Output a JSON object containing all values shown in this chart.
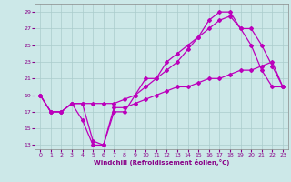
{
  "xlabel": "Windchill (Refroidissement éolien,°C)",
  "xlim": [
    -0.5,
    23.5
  ],
  "ylim": [
    12.5,
    30
  ],
  "yticks": [
    13,
    15,
    17,
    19,
    21,
    23,
    25,
    27,
    29
  ],
  "xticks": [
    0,
    1,
    2,
    3,
    4,
    5,
    6,
    7,
    8,
    9,
    10,
    11,
    12,
    13,
    14,
    15,
    16,
    17,
    18,
    19,
    20,
    21,
    22,
    23
  ],
  "line_color": "#bb00bb",
  "bg_color": "#cce8e8",
  "grid_color": "#aacccc",
  "line1_x": [
    0,
    1,
    2,
    3,
    4,
    5,
    6,
    7,
    8,
    9,
    10,
    11,
    12,
    13,
    14,
    15,
    16,
    17,
    18,
    19,
    20,
    21,
    22,
    23
  ],
  "line1_y": [
    19,
    17,
    17,
    18,
    16,
    13,
    13,
    17,
    17,
    19,
    21,
    21,
    23,
    24,
    25,
    26,
    28,
    29,
    29,
    27,
    25,
    22,
    20,
    20
  ],
  "line2_x": [
    0,
    1,
    2,
    3,
    4,
    5,
    6,
    7,
    8,
    9,
    10,
    11,
    12,
    13,
    14,
    15,
    16,
    17,
    18,
    19,
    20,
    21,
    22,
    23
  ],
  "line2_y": [
    19,
    17,
    17,
    18,
    18,
    18,
    18,
    18,
    18.5,
    19,
    20,
    21,
    22,
    23,
    24.5,
    26,
    27,
    28,
    28.5,
    27,
    27,
    25,
    22.5,
    20
  ],
  "line3_x": [
    0,
    1,
    2,
    3,
    4,
    5,
    6,
    7,
    8,
    9,
    10,
    11,
    12,
    13,
    14,
    15,
    16,
    17,
    18,
    19,
    20,
    21,
    22,
    23
  ],
  "line3_y": [
    19,
    17,
    17,
    18,
    18,
    13.5,
    13,
    17.5,
    17.5,
    18,
    18.5,
    19,
    19.5,
    20,
    20,
    20.5,
    21,
    21,
    21.5,
    22,
    22,
    22.5,
    23,
    20
  ]
}
